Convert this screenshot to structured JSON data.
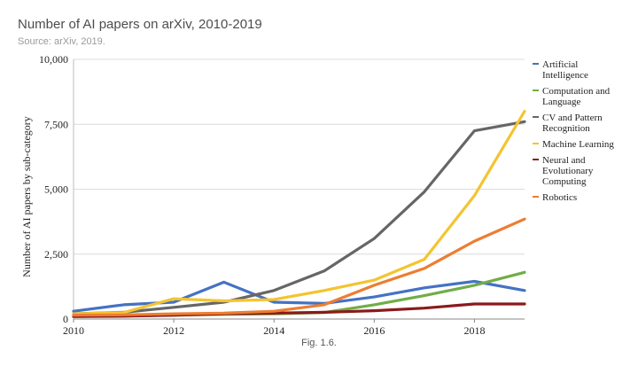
{
  "header": {
    "title": "Number of AI papers on arXiv, 2010-2019",
    "subtitle": "Source: arXiv, 2019."
  },
  "caption": "Fig. 1.6.",
  "chart_data": {
    "type": "line",
    "title": "Number of AI papers on arXiv, 2010-2019",
    "subtitle": "Source: arXiv, 2019.",
    "xlabel": "",
    "ylabel": "Number of AI papers by sub-category",
    "x": [
      2010,
      2011,
      2012,
      2013,
      2014,
      2015,
      2016,
      2017,
      2018,
      2019
    ],
    "x_ticks": [
      "2010",
      "2012",
      "2014",
      "2016",
      "2018"
    ],
    "x_tick_values": [
      2010,
      2012,
      2014,
      2016,
      2018
    ],
    "xlim": [
      2010,
      2019
    ],
    "y_ticks": [
      "0",
      "2,500",
      "5,000",
      "7,500",
      "10,000"
    ],
    "y_tick_values": [
      0,
      2500,
      5000,
      7500,
      10000
    ],
    "ylim": [
      0,
      10000
    ],
    "grid": true,
    "legend_position": "right",
    "series": [
      {
        "name": "Artificial Intelligence",
        "label_lines": [
          "Artificial",
          "Intelligence"
        ],
        "color": "#4472C4",
        "values": [
          300,
          550,
          650,
          1420,
          650,
          600,
          850,
          1200,
          1450,
          1100
        ]
      },
      {
        "name": "Computation and Language",
        "label_lines": [
          "Computation and",
          "Language"
        ],
        "color": "#70AD47",
        "values": [
          100,
          120,
          150,
          180,
          200,
          250,
          550,
          900,
          1300,
          1800
        ]
      },
      {
        "name": "CV and Pattern Recognition",
        "label_lines": [
          "CV and Pattern",
          "Recognition"
        ],
        "color": "#666666",
        "values": [
          200,
          260,
          450,
          650,
          1100,
          1850,
          3100,
          4900,
          7250,
          7600
        ]
      },
      {
        "name": "Machine Learning",
        "label_lines": [
          "Machine Learning"
        ],
        "color": "#F4C430",
        "values": [
          200,
          250,
          780,
          700,
          750,
          1100,
          1500,
          2300,
          4750,
          8000
        ]
      },
      {
        "name": "Neural and Evolutionary Computing",
        "label_lines": [
          "Neural and",
          "Evolutionary",
          "Computing"
        ],
        "color": "#8B1A1A",
        "values": [
          100,
          110,
          150,
          200,
          230,
          260,
          320,
          420,
          580,
          580
        ]
      },
      {
        "name": "Robotics",
        "label_lines": [
          "Robotics"
        ],
        "color": "#ED7D31",
        "values": [
          150,
          160,
          200,
          230,
          300,
          550,
          1300,
          1950,
          3000,
          3850
        ]
      }
    ]
  }
}
